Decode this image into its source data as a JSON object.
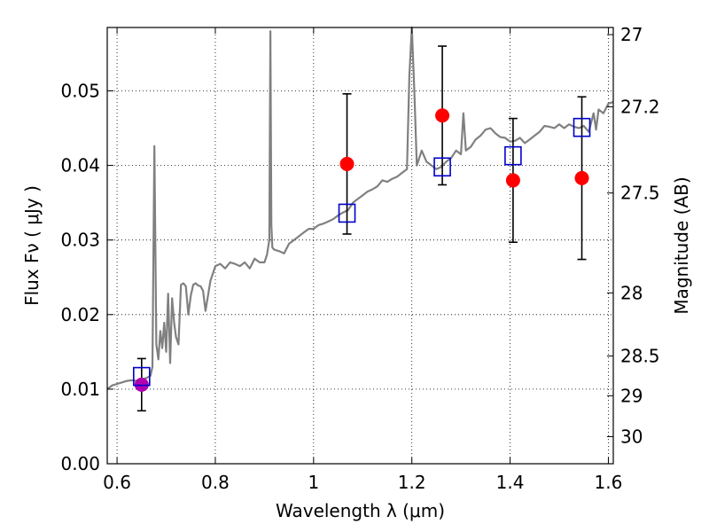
{
  "chart_data": {
    "type": "scatter",
    "title": "",
    "xlabel": "Wavelength  λ (μm)",
    "ylabel": "Flux  Fν  ( μJy )",
    "ylabel_right": "Magnitude (AB)",
    "xlim": [
      0.58,
      1.61
    ],
    "ylim": [
      0.0,
      0.0585
    ],
    "grid": true,
    "x_ticks": [
      {
        "value": 0.6,
        "label": "0.6"
      },
      {
        "value": 0.8,
        "label": "0.8"
      },
      {
        "value": 1.0,
        "label": "1"
      },
      {
        "value": 1.2,
        "label": "1.2"
      },
      {
        "value": 1.4,
        "label": "1.4"
      },
      {
        "value": 1.6,
        "label": "1.6"
      }
    ],
    "y_ticks": [
      {
        "value": 0.0,
        "label": "0.00"
      },
      {
        "value": 0.01,
        "label": "0.01"
      },
      {
        "value": 0.02,
        "label": "0.02"
      },
      {
        "value": 0.03,
        "label": "0.03"
      },
      {
        "value": 0.04,
        "label": "0.04"
      },
      {
        "value": 0.05,
        "label": "0.05"
      }
    ],
    "right_ticks": [
      {
        "mag": 27,
        "label": "27"
      },
      {
        "mag": 27.2,
        "label": "27.2"
      },
      {
        "mag": 27.5,
        "label": "27.5"
      },
      {
        "mag": 28,
        "label": "28"
      },
      {
        "mag": 28.5,
        "label": "28.5"
      },
      {
        "mag": 29,
        "label": "29"
      },
      {
        "mag": 30,
        "label": "30"
      }
    ],
    "colors": {
      "model": "#808080",
      "observed": "#ff0000",
      "observed_first": "#b000b0",
      "synthetic": "#0000cc",
      "errorbar": "#000000"
    },
    "series": [
      {
        "kind": "line",
        "role": "model-spectrum",
        "x": [
          0.58,
          0.59,
          0.6,
          0.61,
          0.62,
          0.63,
          0.64,
          0.65,
          0.66,
          0.668,
          0.672,
          0.676,
          0.68,
          0.684,
          0.688,
          0.692,
          0.696,
          0.7,
          0.704,
          0.708,
          0.712,
          0.716,
          0.72,
          0.725,
          0.73,
          0.735,
          0.74,
          0.745,
          0.75,
          0.755,
          0.76,
          0.765,
          0.77,
          0.775,
          0.78,
          0.79,
          0.8,
          0.81,
          0.82,
          0.83,
          0.84,
          0.85,
          0.86,
          0.87,
          0.88,
          0.89,
          0.9,
          0.905,
          0.91,
          0.912,
          0.914,
          0.916,
          0.92,
          0.93,
          0.94,
          0.95,
          0.96,
          0.97,
          0.98,
          0.99,
          1.0,
          1.01,
          1.02,
          1.03,
          1.04,
          1.05,
          1.06,
          1.07,
          1.08,
          1.09,
          1.1,
          1.11,
          1.12,
          1.13,
          1.14,
          1.15,
          1.16,
          1.17,
          1.18,
          1.19,
          1.195,
          1.2,
          1.205,
          1.21,
          1.22,
          1.23,
          1.24,
          1.25,
          1.26,
          1.27,
          1.28,
          1.29,
          1.3,
          1.305,
          1.31,
          1.32,
          1.33,
          1.34,
          1.35,
          1.36,
          1.37,
          1.38,
          1.39,
          1.4,
          1.41,
          1.42,
          1.43,
          1.44,
          1.45,
          1.46,
          1.47,
          1.48,
          1.49,
          1.5,
          1.51,
          1.52,
          1.53,
          1.54,
          1.55,
          1.56,
          1.57,
          1.575,
          1.58,
          1.59,
          1.6,
          1.61
        ],
        "y": [
          0.01,
          0.0105,
          0.0107,
          0.0109,
          0.0111,
          0.0112,
          0.0111,
          0.0113,
          0.0115,
          0.0118,
          0.013,
          0.0426,
          0.016,
          0.014,
          0.0178,
          0.0155,
          0.0189,
          0.015,
          0.0228,
          0.0135,
          0.0222,
          0.019,
          0.017,
          0.016,
          0.024,
          0.0242,
          0.0238,
          0.02,
          0.0225,
          0.024,
          0.0242,
          0.0239,
          0.0238,
          0.0232,
          0.0205,
          0.0245,
          0.0265,
          0.0268,
          0.0262,
          0.027,
          0.0268,
          0.0265,
          0.027,
          0.0262,
          0.0275,
          0.027,
          0.027,
          0.028,
          0.03,
          0.058,
          0.032,
          0.029,
          0.0287,
          0.0285,
          0.0282,
          0.0295,
          0.03,
          0.0305,
          0.031,
          0.0315,
          0.0315,
          0.032,
          0.0322,
          0.0325,
          0.0328,
          0.0333,
          0.0337,
          0.034,
          0.035,
          0.0355,
          0.036,
          0.0365,
          0.0368,
          0.0372,
          0.038,
          0.0378,
          0.0382,
          0.0385,
          0.039,
          0.0395,
          0.052,
          0.0585,
          0.05,
          0.04,
          0.042,
          0.0405,
          0.04,
          0.0395,
          0.0398,
          0.0405,
          0.041,
          0.042,
          0.0415,
          0.047,
          0.042,
          0.0425,
          0.0435,
          0.044,
          0.0448,
          0.045,
          0.0443,
          0.0438,
          0.0437,
          0.0432,
          0.0433,
          0.0437,
          0.043,
          0.0435,
          0.044,
          0.0445,
          0.0453,
          0.0452,
          0.045,
          0.0455,
          0.045,
          0.0455,
          0.0452,
          0.045,
          0.0453,
          0.0445,
          0.047,
          0.0448,
          0.0475,
          0.047,
          0.0483,
          0.0485
        ]
      },
      {
        "kind": "markers",
        "role": "observed-flux",
        "marker": "circle",
        "x": [
          0.65,
          1.068,
          1.262,
          1.406,
          1.546
        ],
        "y": [
          0.0106,
          0.0402,
          0.0467,
          0.038,
          0.0383
        ],
        "yerr": [
          0.0035,
          0.0094,
          0.0093,
          0.0083,
          0.0109
        ]
      },
      {
        "kind": "markers",
        "role": "synthetic-photometry",
        "marker": "square-open",
        "x": [
          0.65,
          1.068,
          1.262,
          1.406,
          1.546
        ],
        "y": [
          0.0117,
          0.0336,
          0.0398,
          0.0413,
          0.0451
        ]
      }
    ]
  }
}
